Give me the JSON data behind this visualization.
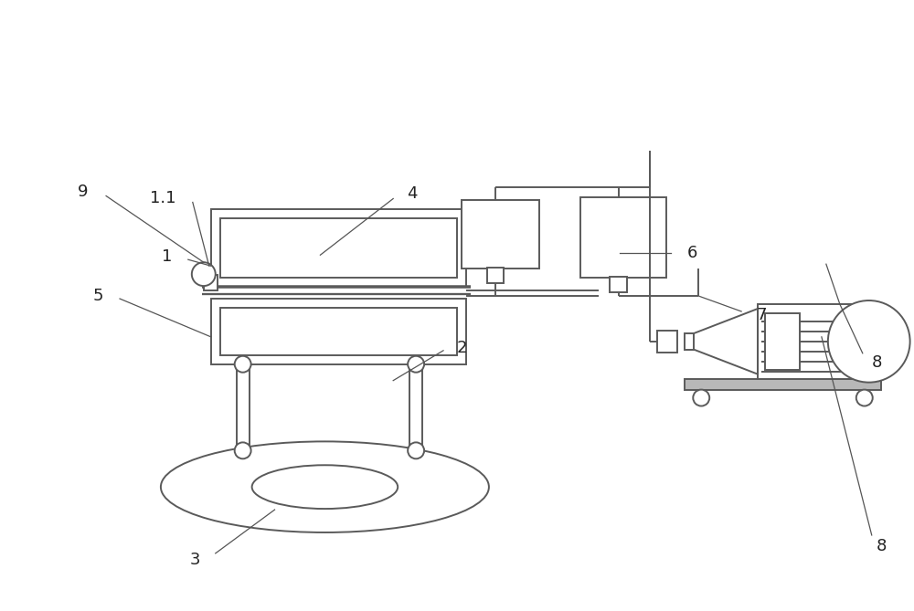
{
  "bg_color": "#ffffff",
  "line_color": "#5a5a5a",
  "line_width": 1.4,
  "label_fontsize": 13
}
